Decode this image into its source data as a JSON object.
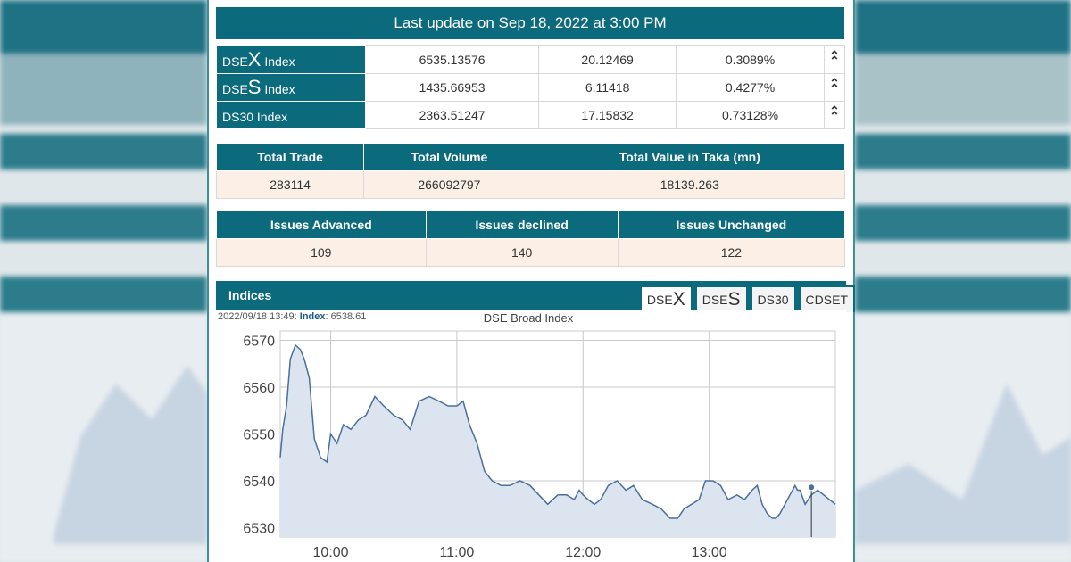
{
  "header": {
    "last_update": "Last update on Sep 18, 2022 at 3:00 PM"
  },
  "indices_table": [
    {
      "prefix": "DSE",
      "big": "X",
      "suffix": " Index",
      "value": "6535.13576",
      "change": "20.12469",
      "percent": "0.3089%",
      "arrow": "up-arrow-icon"
    },
    {
      "prefix": "DSE",
      "big": "S",
      "suffix": " Index",
      "value": "1435.66953",
      "change": "6.11418",
      "percent": "0.4277%",
      "arrow": "up-arrow-icon"
    },
    {
      "prefix": "DS30 Index",
      "big": "",
      "suffix": "",
      "value": "2363.51247",
      "change": "17.15832",
      "percent": "0.73128%",
      "arrow": "up-arrow-icon"
    }
  ],
  "trade_stats": {
    "headers": [
      "Total Trade",
      "Total Volume",
      "Total Value in Taka (mn)"
    ],
    "values": [
      "283114",
      "266092797",
      "18139.263"
    ]
  },
  "issue_stats": {
    "headers": [
      "Issues Advanced",
      "Issues declined",
      "Issues Unchanged"
    ],
    "values": [
      "109",
      "140",
      "122"
    ]
  },
  "indices_panel": {
    "title": "Indices",
    "tabs": [
      {
        "prefix": "DSE",
        "big": "X",
        "active": true
      },
      {
        "prefix": "DSE",
        "big": "S",
        "active": false
      },
      {
        "prefix": "DS30",
        "big": "",
        "active": false
      },
      {
        "prefix": "CDSET",
        "big": "",
        "active": false
      }
    ]
  },
  "chart_info": {
    "timestamp": "2022/09/18 13:49:",
    "index_label": "Index",
    "index_value": "6538.61"
  },
  "colors": {
    "accent": "#0c6a7d",
    "line": "#4a6f9c",
    "fill": "#dce5ef",
    "up": "#2fa33b"
  },
  "chart_data": {
    "type": "area",
    "title": "DSE Broad Index",
    "xlabel": "",
    "ylabel": "",
    "ylim": [
      6528,
      6572
    ],
    "xlim": [
      9.6,
      14.0
    ],
    "y_ticks": [
      6530,
      6540,
      6550,
      6560,
      6570
    ],
    "x_ticks": [
      {
        "v": 10.0,
        "label": "10:00"
      },
      {
        "v": 11.0,
        "label": "11:00"
      },
      {
        "v": 12.0,
        "label": "12:00"
      },
      {
        "v": 13.0,
        "label": "13:00"
      }
    ],
    "series": [
      {
        "x": [
          9.6,
          9.62,
          9.65,
          9.68,
          9.72,
          9.76,
          9.79,
          9.83,
          9.87,
          9.92,
          9.97,
          10.0,
          10.05,
          10.1,
          10.16,
          10.22,
          10.28,
          10.35,
          10.42,
          10.5,
          10.57,
          10.63,
          10.7,
          10.78,
          10.86,
          10.93,
          11.0,
          11.05,
          11.1,
          11.16,
          11.22,
          11.28,
          11.35,
          11.42,
          11.5,
          11.58,
          11.65,
          11.72,
          11.8,
          11.87,
          11.93,
          11.97,
          12.0,
          12.04,
          12.09,
          12.14,
          12.2,
          12.27,
          12.34,
          12.4,
          12.47,
          12.55,
          12.62,
          12.69,
          12.75,
          12.8,
          12.86,
          12.92,
          12.97,
          13.03,
          13.09,
          13.15,
          13.22,
          13.28,
          13.34,
          13.38,
          13.42,
          13.46,
          13.5,
          13.53,
          13.56,
          13.6,
          13.64,
          13.68,
          13.7,
          13.72,
          13.76,
          13.81,
          13.86,
          14.0
        ],
        "y": [
          6545,
          6551,
          6556,
          6566,
          6569,
          6568,
          6566,
          6562,
          6549,
          6545,
          6544,
          6550,
          6548,
          6552,
          6551,
          6553,
          6554,
          6558,
          6556,
          6554,
          6553,
          6551,
          6557,
          6558,
          6557,
          6556,
          6556,
          6557,
          6552,
          6548,
          6542,
          6540,
          6539,
          6539,
          6540,
          6539,
          6537,
          6535,
          6537,
          6537,
          6536,
          6538,
          6537,
          6536,
          6535,
          6536,
          6539,
          6540,
          6538,
          6539,
          6536,
          6535,
          6534,
          6532,
          6532,
          6534,
          6535,
          6536,
          6540,
          6540,
          6539,
          6536,
          6537,
          6536,
          6538,
          6539,
          6535,
          6533,
          6532,
          6532,
          6533,
          6535,
          6537,
          6539,
          6538,
          6538,
          6535,
          6537,
          6538,
          6535
        ]
      }
    ],
    "marker": {
      "x": 13.81,
      "y": 6538.61
    }
  }
}
